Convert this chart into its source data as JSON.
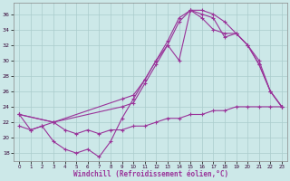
{
  "xlabel": "Windchill (Refroidissement éolien,°C)",
  "bg_color": "#cce8e8",
  "grid_color": "#aacccc",
  "line_color": "#993399",
  "xlim_min": -0.5,
  "xlim_max": 23.5,
  "ylim_min": 17.0,
  "ylim_max": 37.5,
  "yticks": [
    18,
    20,
    22,
    24,
    26,
    28,
    30,
    32,
    34,
    36
  ],
  "xticks": [
    0,
    1,
    2,
    3,
    4,
    5,
    6,
    7,
    8,
    9,
    10,
    11,
    12,
    13,
    14,
    15,
    16,
    17,
    18,
    19,
    20,
    21,
    22,
    23
  ],
  "line1_x": [
    0,
    1,
    2,
    3,
    4,
    5,
    6,
    7,
    8,
    9,
    10,
    11,
    12,
    13,
    14,
    15,
    16,
    17,
    18,
    19,
    20,
    21,
    22,
    23
  ],
  "line1_y": [
    23.0,
    21.0,
    21.5,
    19.5,
    18.5,
    18.0,
    18.5,
    17.5,
    19.5,
    22.5,
    25.0,
    27.5,
    30.0,
    32.0,
    30.0,
    36.5,
    36.5,
    36.0,
    35.0,
    33.5,
    32.0,
    29.5,
    26.0,
    24.0
  ],
  "line2_x": [
    0,
    3,
    9,
    10,
    11,
    12,
    13,
    14,
    15,
    16,
    17,
    18,
    19,
    20,
    21,
    22,
    23
  ],
  "line2_y": [
    23.0,
    22.0,
    25.0,
    25.5,
    27.5,
    30.0,
    32.5,
    35.5,
    36.5,
    36.0,
    35.5,
    33.0,
    33.5,
    32.0,
    29.5,
    26.0,
    24.0
  ],
  "line3_x": [
    0,
    3,
    9,
    10,
    11,
    12,
    13,
    14,
    15,
    16,
    17,
    18,
    19,
    20,
    21,
    22,
    23
  ],
  "line3_y": [
    23.0,
    22.0,
    24.0,
    24.5,
    27.0,
    29.5,
    32.0,
    35.0,
    36.5,
    35.5,
    34.0,
    33.5,
    33.5,
    32.0,
    30.0,
    26.0,
    24.0
  ],
  "line4_x": [
    0,
    1,
    2,
    3,
    4,
    5,
    6,
    7,
    8,
    9,
    10,
    11,
    12,
    13,
    14,
    15,
    16,
    17,
    18,
    19,
    20,
    21,
    22,
    23
  ],
  "line4_y": [
    21.5,
    21.0,
    21.5,
    22.0,
    21.0,
    20.5,
    21.0,
    20.5,
    21.0,
    21.0,
    21.5,
    21.5,
    22.0,
    22.5,
    22.5,
    23.0,
    23.0,
    23.5,
    23.5,
    24.0,
    24.0,
    24.0,
    24.0,
    24.0
  ]
}
